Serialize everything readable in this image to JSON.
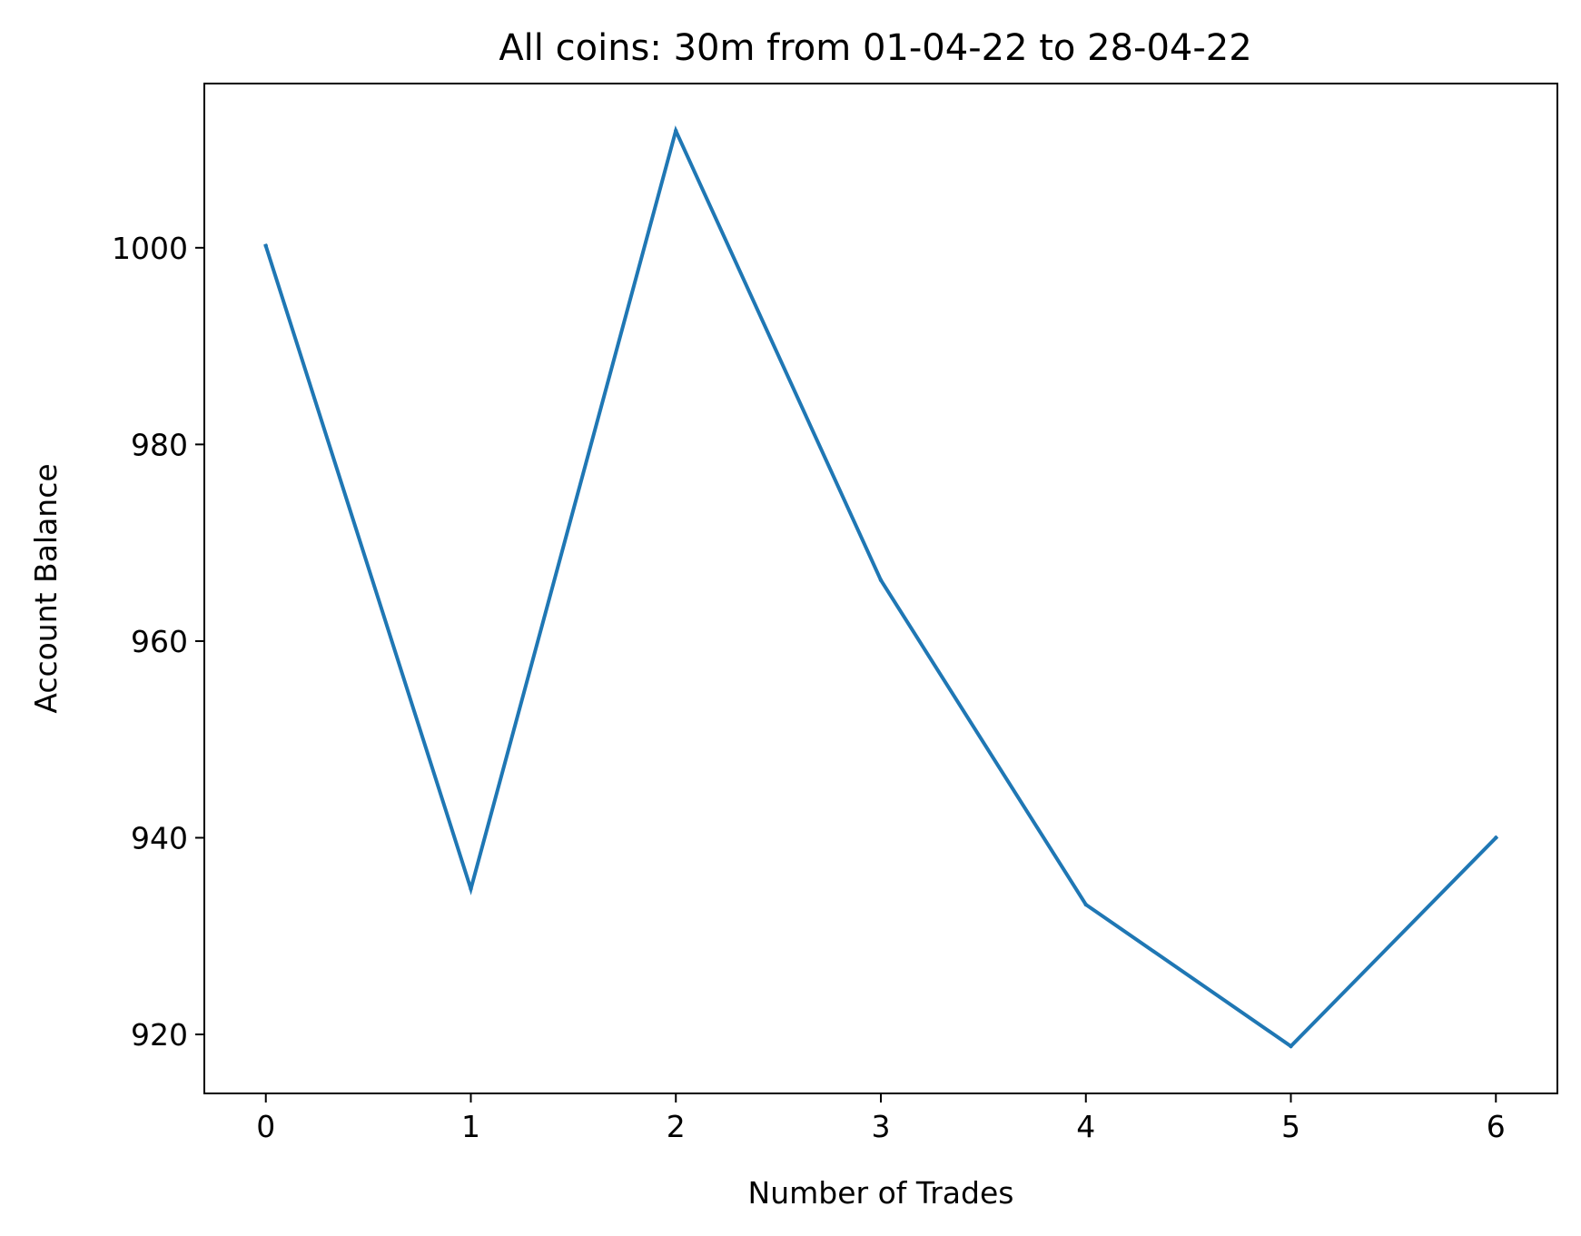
{
  "chart_data": {
    "type": "line",
    "title": "All coins: 30m from 01-04-22 to 28-04-22",
    "xlabel": "Number of Trades",
    "ylabel": "Account Balance",
    "x": [
      0,
      1,
      2,
      3,
      4,
      5,
      6
    ],
    "series": [
      {
        "values": [
          1000.2,
          934.8,
          1011.9,
          966.2,
          933.2,
          918.8,
          940.0
        ],
        "color": "#1f77b4"
      }
    ],
    "xlim": [
      -0.3,
      6.3
    ],
    "ylim": [
      914.0,
      1016.7
    ],
    "xticks": [
      0,
      1,
      2,
      3,
      4,
      5,
      6
    ],
    "yticks": [
      920,
      940,
      960,
      980,
      1000
    ],
    "grid": false
  }
}
